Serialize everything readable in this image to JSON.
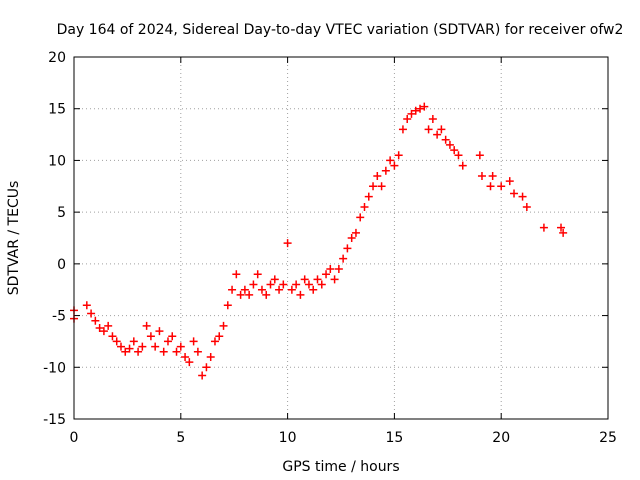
{
  "chart_data": {
    "type": "scatter",
    "title": "Day 164 of 2024, Sidereal Day-to-day VTEC variation (SDTVAR) for receiver ofw2",
    "xlabel": "GPS time / hours",
    "ylabel": "SDTVAR / TECUs",
    "xlim": [
      0,
      25
    ],
    "ylim": [
      -15,
      20
    ],
    "xticks": [
      0,
      5,
      10,
      15,
      20,
      25
    ],
    "yticks": [
      -15,
      -10,
      -5,
      0,
      5,
      10,
      15,
      20
    ],
    "grid": true,
    "marker": "+",
    "marker_color": "#ff0000",
    "series": [
      {
        "name": "SDTVAR",
        "x": [
          0.0,
          0.0,
          0.6,
          0.8,
          1.0,
          1.2,
          1.4,
          1.6,
          1.8,
          2.0,
          2.2,
          2.4,
          2.6,
          2.8,
          3.0,
          3.2,
          3.4,
          3.6,
          3.8,
          4.0,
          4.2,
          4.4,
          4.6,
          4.8,
          5.0,
          5.2,
          5.4,
          5.6,
          5.8,
          6.0,
          6.2,
          6.4,
          6.6,
          6.8,
          7.0,
          7.2,
          7.4,
          7.6,
          7.8,
          8.0,
          8.2,
          8.4,
          8.6,
          8.8,
          9.0,
          9.2,
          9.4,
          9.6,
          9.8,
          10.0,
          10.2,
          10.4,
          10.6,
          10.8,
          11.0,
          11.2,
          11.4,
          11.6,
          11.8,
          12.0,
          12.2,
          12.4,
          12.6,
          12.8,
          13.0,
          13.2,
          13.4,
          13.6,
          13.8,
          14.0,
          14.2,
          14.4,
          14.6,
          14.8,
          15.0,
          15.2,
          15.4,
          15.6,
          15.8,
          16.0,
          16.2,
          16.4,
          16.6,
          16.8,
          17.0,
          17.2,
          17.4,
          17.6,
          17.8,
          18.0,
          18.2,
          19.0,
          19.1,
          19.5,
          19.6,
          20.0,
          20.4,
          20.6,
          21.0,
          21.2,
          22.0,
          22.8,
          22.9
        ],
        "y": [
          -4.5,
          -5.3,
          -4.0,
          -4.8,
          -5.5,
          -6.2,
          -6.5,
          -6.0,
          -7.0,
          -7.5,
          -8.0,
          -8.5,
          -8.2,
          -7.5,
          -8.5,
          -8.0,
          -6.0,
          -7.0,
          -8.0,
          -6.5,
          -8.5,
          -7.5,
          -7.0,
          -8.5,
          -8.0,
          -9.0,
          -9.5,
          -7.5,
          -8.5,
          -10.8,
          -10.0,
          -9.0,
          -7.5,
          -7.0,
          -6.0,
          -4.0,
          -2.5,
          -1.0,
          -3.0,
          -2.5,
          -3.0,
          -2.0,
          -1.0,
          -2.5,
          -3.0,
          -2.0,
          -1.5,
          -2.5,
          -2.0,
          2.0,
          -2.5,
          -2.0,
          -3.0,
          -1.5,
          -2.0,
          -2.5,
          -1.5,
          -2.0,
          -1.0,
          -0.5,
          -1.5,
          -0.5,
          0.5,
          1.5,
          2.5,
          3.0,
          4.5,
          5.5,
          6.5,
          7.5,
          8.5,
          7.5,
          9.0,
          10.0,
          9.5,
          10.5,
          13.0,
          14.0,
          14.5,
          14.8,
          15.0,
          15.2,
          13.0,
          14.0,
          12.5,
          13.0,
          12.0,
          11.5,
          11.0,
          10.5,
          9.5,
          10.5,
          8.5,
          7.5,
          8.5,
          7.5,
          8.0,
          6.8,
          6.5,
          5.5,
          3.5,
          3.5,
          3.0
        ]
      }
    ]
  }
}
